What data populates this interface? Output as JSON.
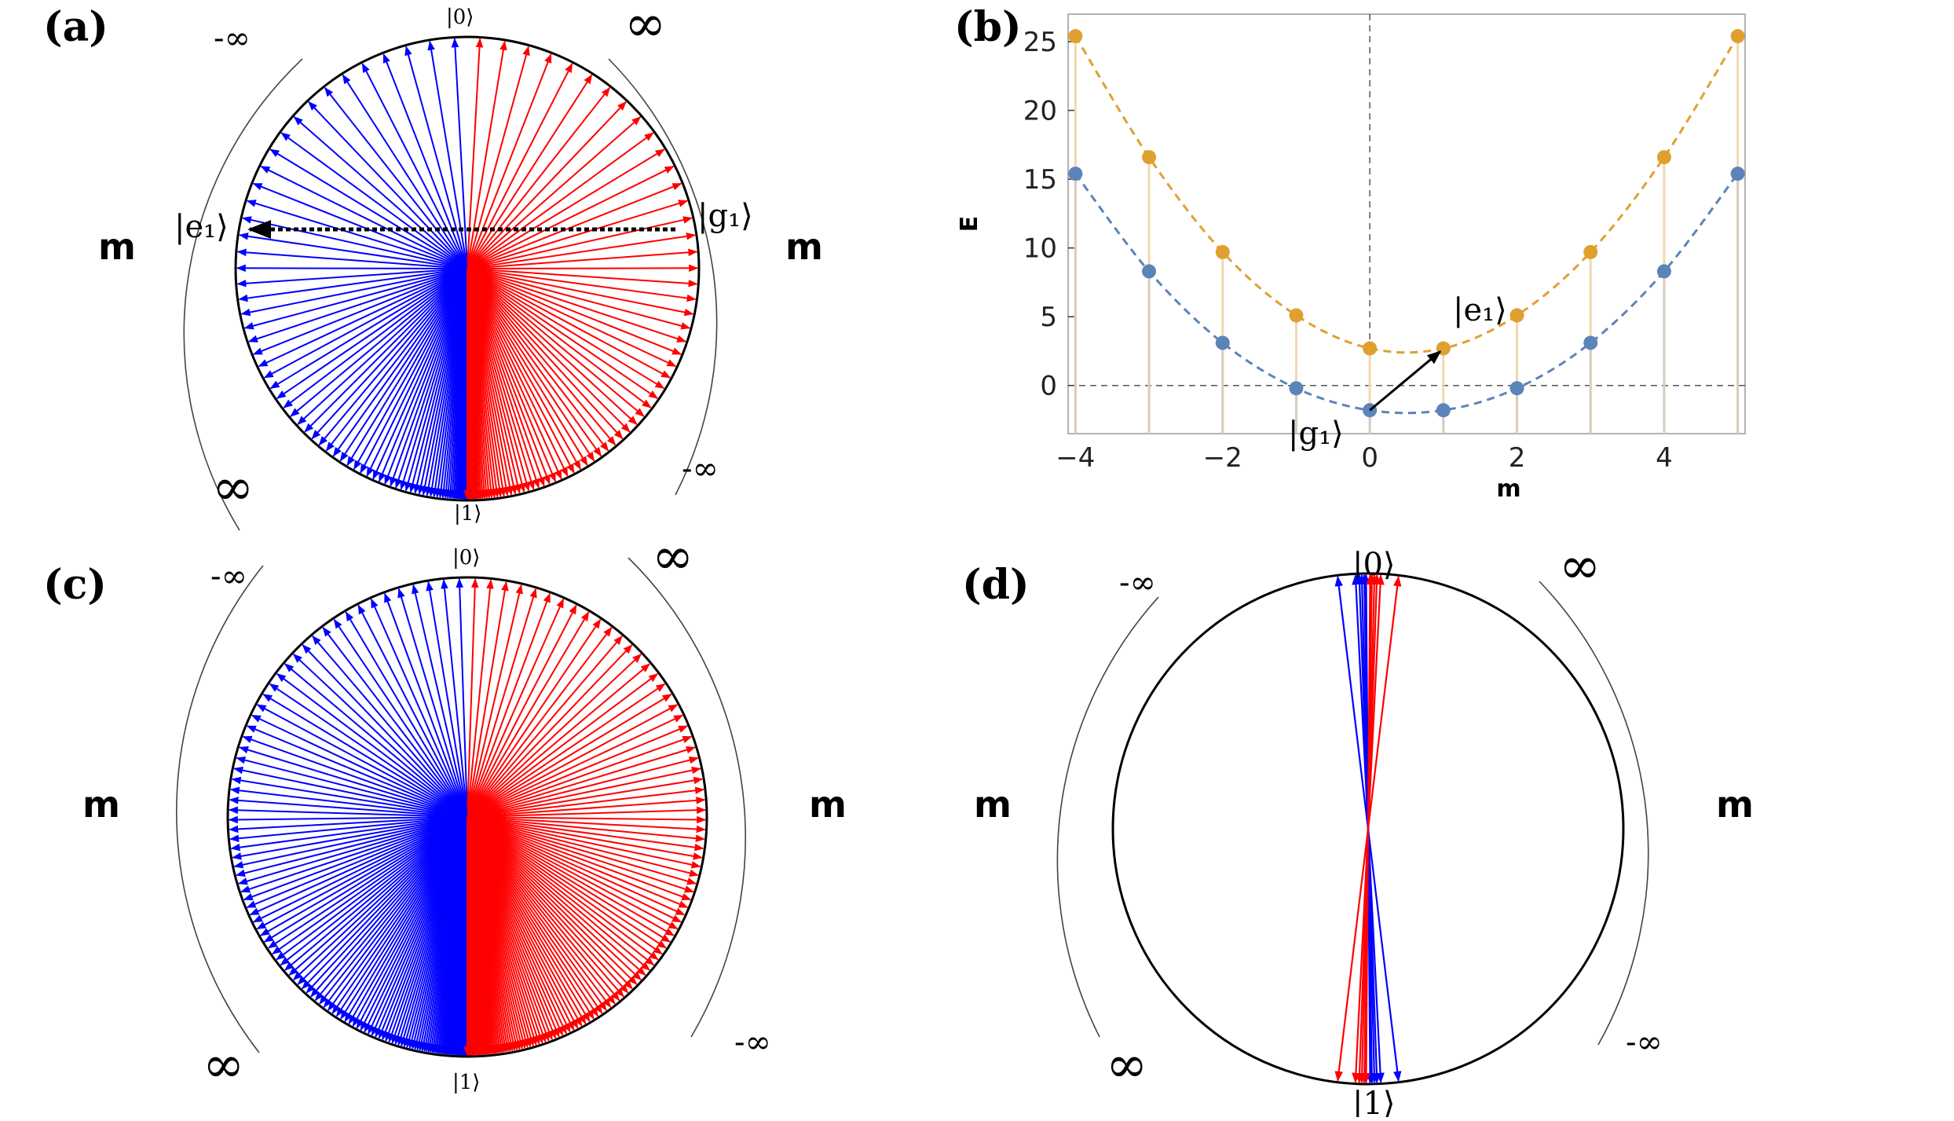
{
  "panels": {
    "a": {
      "label": "(a)",
      "top_ket": "|0⟩",
      "bottom_ket": "|1⟩",
      "left_m": "m",
      "right_m": "m",
      "top_left": "-∞",
      "top_right": "∞",
      "bottom_left": "∞",
      "bottom_right": "-∞",
      "left_state": "|e₁⟩",
      "right_state": "|g₁⟩"
    },
    "b": {
      "label": "(b)",
      "e1_label": "|e₁⟩",
      "g1_label": "|g₁⟩"
    },
    "c": {
      "label": "(c)",
      "top_ket": "|0⟩",
      "bottom_ket": "|1⟩",
      "left_m": "m",
      "right_m": "m",
      "top_left": "-∞",
      "top_right": "∞",
      "bottom_left": "∞",
      "bottom_right": "-∞"
    },
    "d": {
      "label": "(d)",
      "top_ket": "|0⟩",
      "bottom_ket": "|1⟩",
      "left_m": "m",
      "right_m": "m",
      "top_left": "-∞",
      "top_right": "∞",
      "bottom_left": "∞",
      "bottom_right": "-∞"
    }
  },
  "colors": {
    "blue_arrows": "#0000ff",
    "red_arrows": "#ff0000",
    "upper_series": "#e0a030",
    "lower_series": "#5b84b8",
    "stems": "#f3d7b0"
  },
  "chart_data": {
    "type": "scatter",
    "xlabel": "m",
    "ylabel": "E",
    "xlim": [
      -4,
      5
    ],
    "ylim": [
      -3.5,
      27
    ],
    "xticks": [
      -4,
      -2,
      0,
      2,
      4
    ],
    "yticks": [
      0,
      5,
      10,
      15,
      20,
      25
    ],
    "series": [
      {
        "x": [
          -4,
          -3,
          -2,
          -1,
          0,
          1,
          2,
          3,
          4,
          5
        ],
        "values": [
          25.4,
          16.6,
          9.7,
          5.1,
          2.7,
          2.7,
          5.1,
          9.7,
          16.6,
          25.4
        ],
        "color": "#e0a030"
      },
      {
        "x": [
          -4,
          -3,
          -2,
          -1,
          0,
          1,
          2,
          3,
          4,
          5
        ],
        "values": [
          15.4,
          8.3,
          3.1,
          -0.2,
          -1.8,
          -1.8,
          -0.2,
          3.1,
          8.3,
          15.4
        ],
        "color": "#5b84b8"
      }
    ],
    "reference_lines": {
      "x": 0,
      "y": 0
    },
    "annotation_arrow": {
      "from": [
        0,
        -1.8
      ],
      "to": [
        1,
        2.7
      ]
    }
  }
}
